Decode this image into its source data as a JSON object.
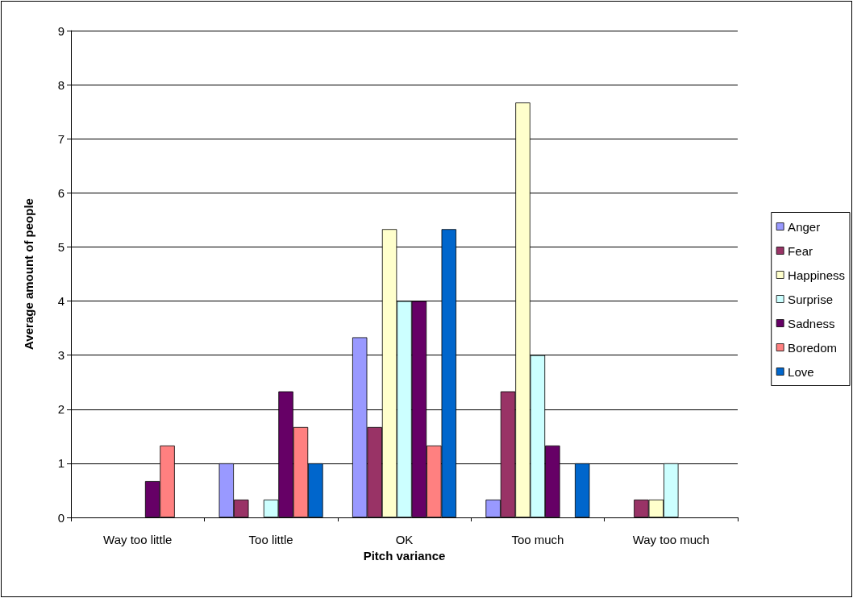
{
  "chart_data": {
    "type": "bar",
    "xlabel": "Pitch variance",
    "ylabel": "Average amount of people",
    "categories": [
      "Way too little",
      "Too little",
      "OK",
      "Too much",
      "Way too much"
    ],
    "series": [
      {
        "name": "Anger",
        "color": "#9999ff",
        "values": [
          0,
          1,
          3.33,
          0.33,
          0
        ]
      },
      {
        "name": "Fear",
        "color": "#993366",
        "values": [
          0,
          0.33,
          1.67,
          2.33,
          0.33
        ]
      },
      {
        "name": "Happiness",
        "color": "#ffffcc",
        "values": [
          0,
          0,
          5.33,
          7.67,
          0.33
        ]
      },
      {
        "name": "Surprise",
        "color": "#ccffff",
        "values": [
          0,
          0.33,
          4,
          3,
          1
        ]
      },
      {
        "name": "Sadness",
        "color": "#660066",
        "values": [
          0.67,
          2.33,
          4,
          1.33,
          0
        ]
      },
      {
        "name": "Boredom",
        "color": "#ff8080",
        "values": [
          1.33,
          1.67,
          1.33,
          0,
          0
        ]
      },
      {
        "name": "Love",
        "color": "#0066cc",
        "values": [
          0,
          1,
          5.33,
          1,
          0
        ]
      }
    ],
    "ylim": [
      0,
      9
    ],
    "yticks": [
      0,
      1,
      2,
      3,
      4,
      5,
      6,
      7,
      8,
      9
    ],
    "grid": "y",
    "legend": "right"
  }
}
